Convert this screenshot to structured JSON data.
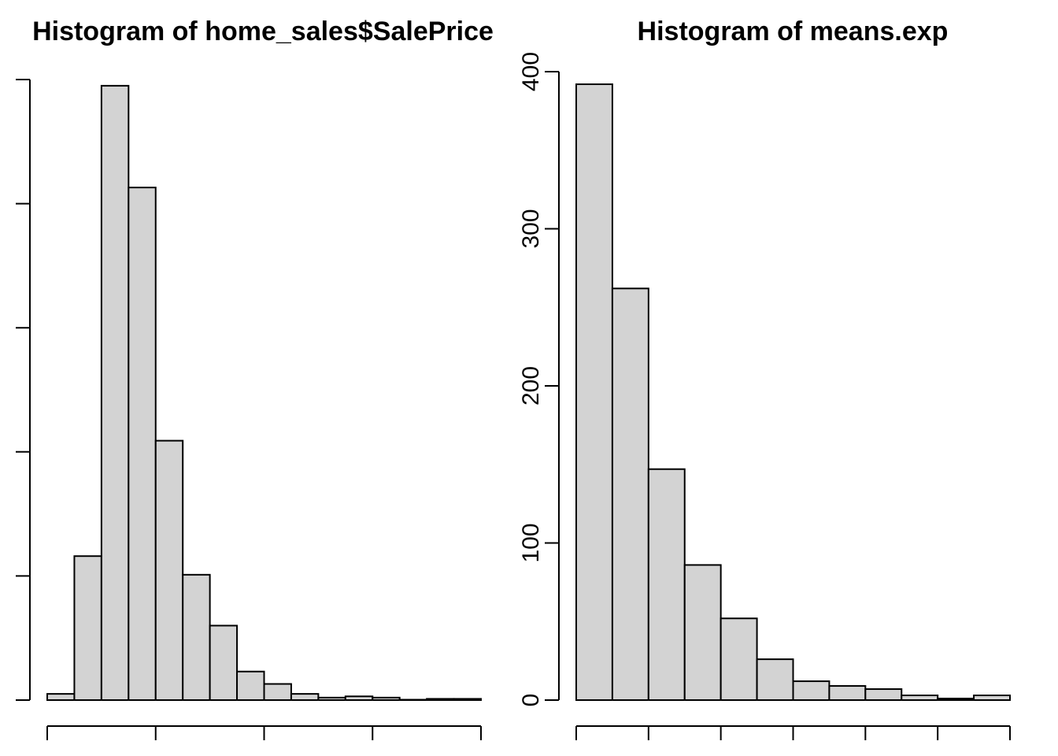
{
  "chart_data": [
    {
      "type": "bar",
      "title": "Histogram of home_sales$SalePrice",
      "xlabel": "",
      "ylabel": "",
      "ylim": [
        0,
        500
      ],
      "y_ticks": [
        0,
        100,
        200,
        300,
        400,
        500
      ],
      "y_tick_labels_visible": false,
      "x_ticks_count": 5,
      "x_tick_labels_visible": false,
      "grid": false,
      "bin_count": 16,
      "values": [
        5,
        116,
        495,
        413,
        209,
        101,
        60,
        23,
        13,
        5,
        2,
        3,
        2,
        0,
        1,
        1
      ]
    },
    {
      "type": "bar",
      "title": "Histogram of means.exp",
      "xlabel": "",
      "ylabel": "",
      "ylim": [
        0,
        400
      ],
      "y_ticks": [
        0,
        100,
        200,
        300,
        400
      ],
      "y_tick_labels": [
        "0",
        "100",
        "200",
        "300",
        "400"
      ],
      "x_ticks_count": 7,
      "x_tick_labels_visible": false,
      "grid": false,
      "bin_count": 12,
      "values": [
        392,
        262,
        147,
        86,
        52,
        26,
        12,
        9,
        7,
        3,
        1,
        3
      ]
    }
  ]
}
